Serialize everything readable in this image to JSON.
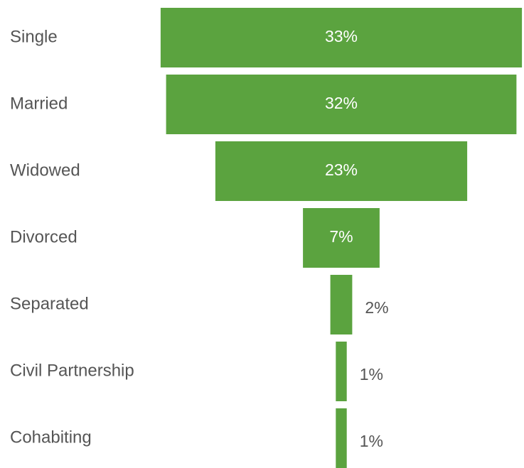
{
  "chart_data": {
    "type": "funnel",
    "categories": [
      "Single",
      "Married",
      "Widowed",
      "Divorced",
      "Separated",
      "Civil Partnership",
      "Cohabiting"
    ],
    "values": [
      33,
      32,
      23,
      7,
      2,
      1,
      1
    ],
    "value_labels": [
      "33%",
      "32%",
      "23%",
      "7%",
      "2%",
      "1%",
      "1%"
    ],
    "color": "#5ba33f"
  }
}
